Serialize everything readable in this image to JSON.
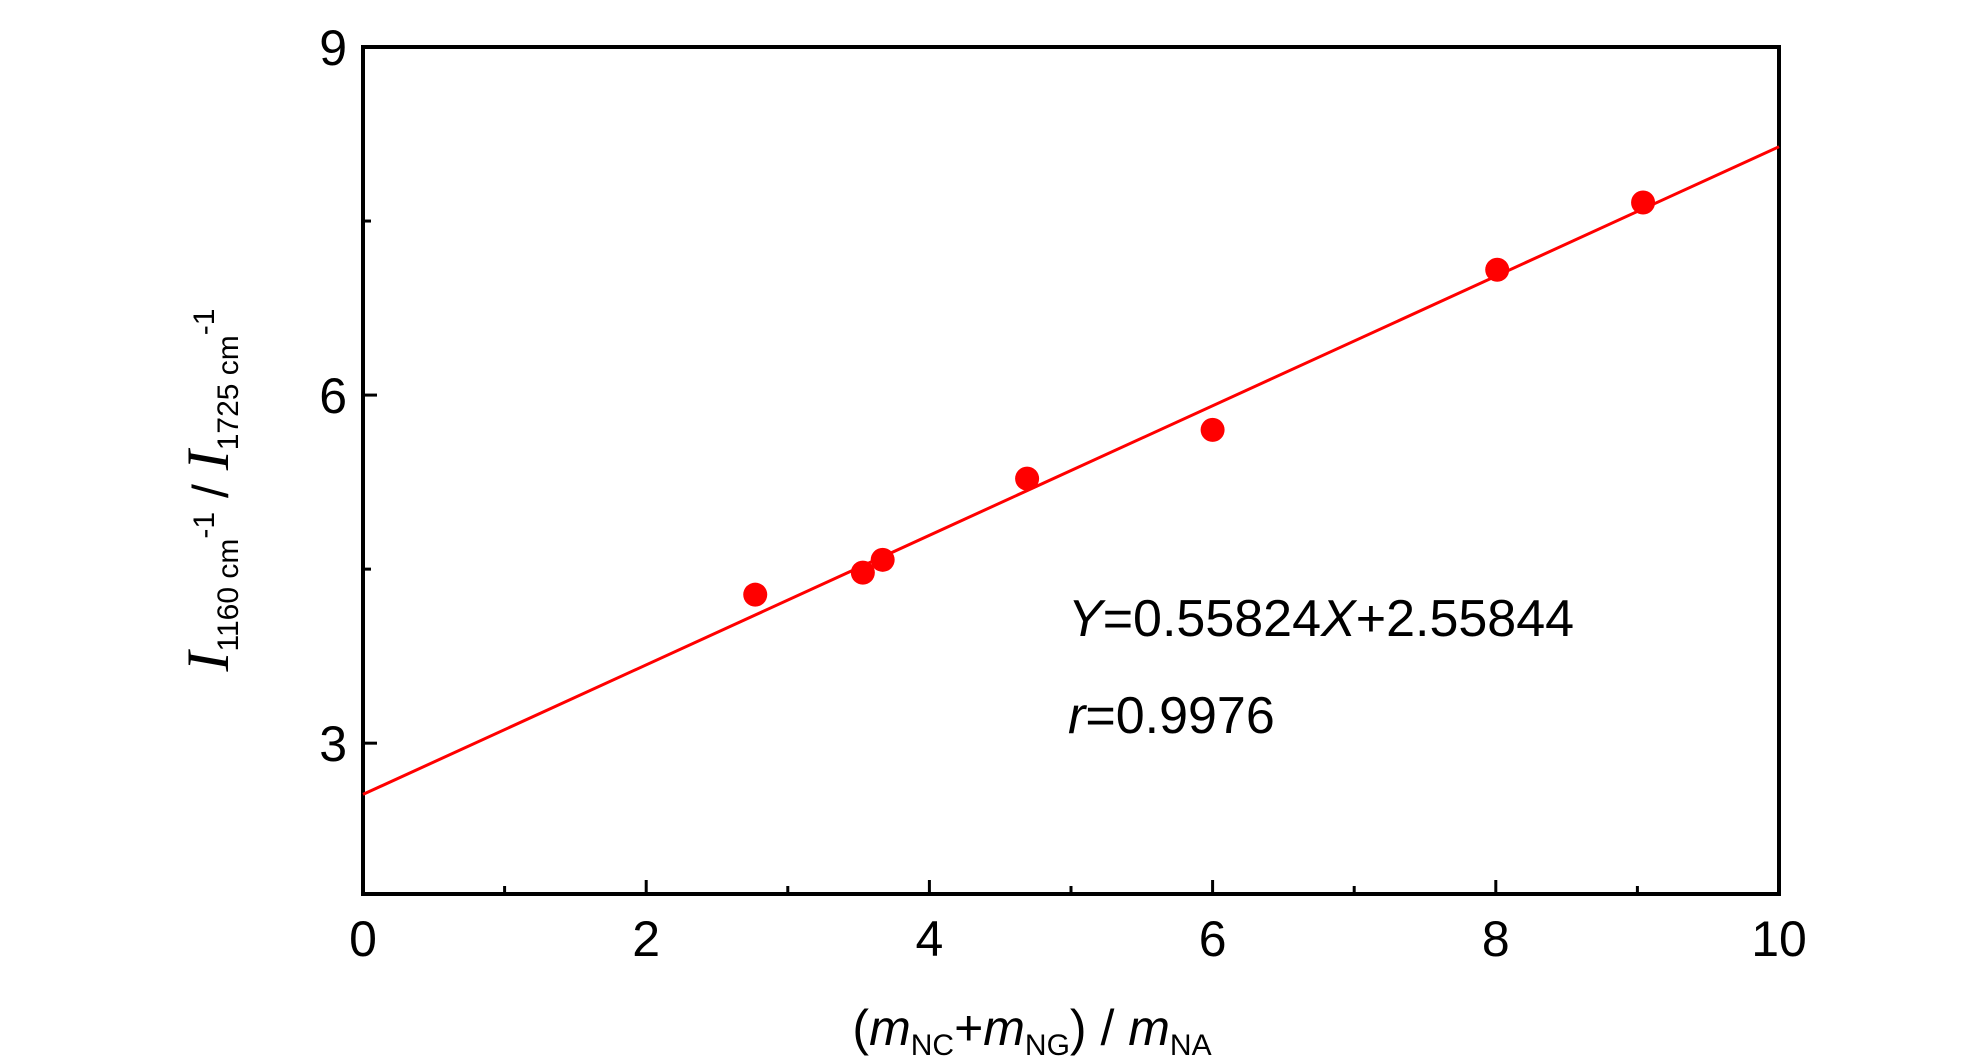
{
  "chart_data": {
    "type": "scatter",
    "title": "",
    "xlabel": {
      "open_paren": "(",
      "m1": "m",
      "sub1": "NC",
      "plus": "+",
      "m2": "m",
      "sub2": "NG",
      "close_slash": ") / ",
      "m3": "m",
      "sub3": "NA"
    },
    "ylabel": {
      "i1": "I",
      "sub1": "1160 cm",
      "sup1": "-1",
      "slash": " / ",
      "i2": "I",
      "sub2": "1725 cm",
      "sup2": "-1"
    },
    "xlim": [
      0,
      10
    ],
    "ylim": [
      1.7,
      9
    ],
    "x_ticks": [
      "0",
      "2",
      "4",
      "6",
      "8",
      "10"
    ],
    "x_tick_values": [
      0,
      2,
      4,
      6,
      8,
      10
    ],
    "x_minor_ticks": [
      1,
      3,
      5,
      7,
      9
    ],
    "y_ticks": [
      "3",
      "6",
      "9"
    ],
    "y_tick_values": [
      3,
      6,
      9
    ],
    "y_minor_ticks": [
      4.5,
      7.5
    ],
    "grid": false,
    "legend": "none",
    "series": [
      {
        "type": "scatter",
        "color": "#ff0000",
        "x": [
          2.77,
          3.53,
          3.67,
          4.69,
          6.0,
          8.01,
          9.04
        ],
        "y": [
          4.28,
          4.47,
          4.58,
          5.28,
          5.7,
          7.08,
          7.66
        ]
      },
      {
        "type": "line",
        "color": "#ff0000",
        "slope": 0.55824,
        "intercept": 2.55844,
        "x": [
          0,
          10
        ]
      }
    ],
    "annotations": {
      "equation": {
        "y_var": "Y",
        "mid": "=0.55824",
        "x_var": "X",
        "tail": "+2.55844"
      },
      "r": {
        "r_var": "r",
        "value": "=0.9976"
      }
    }
  }
}
